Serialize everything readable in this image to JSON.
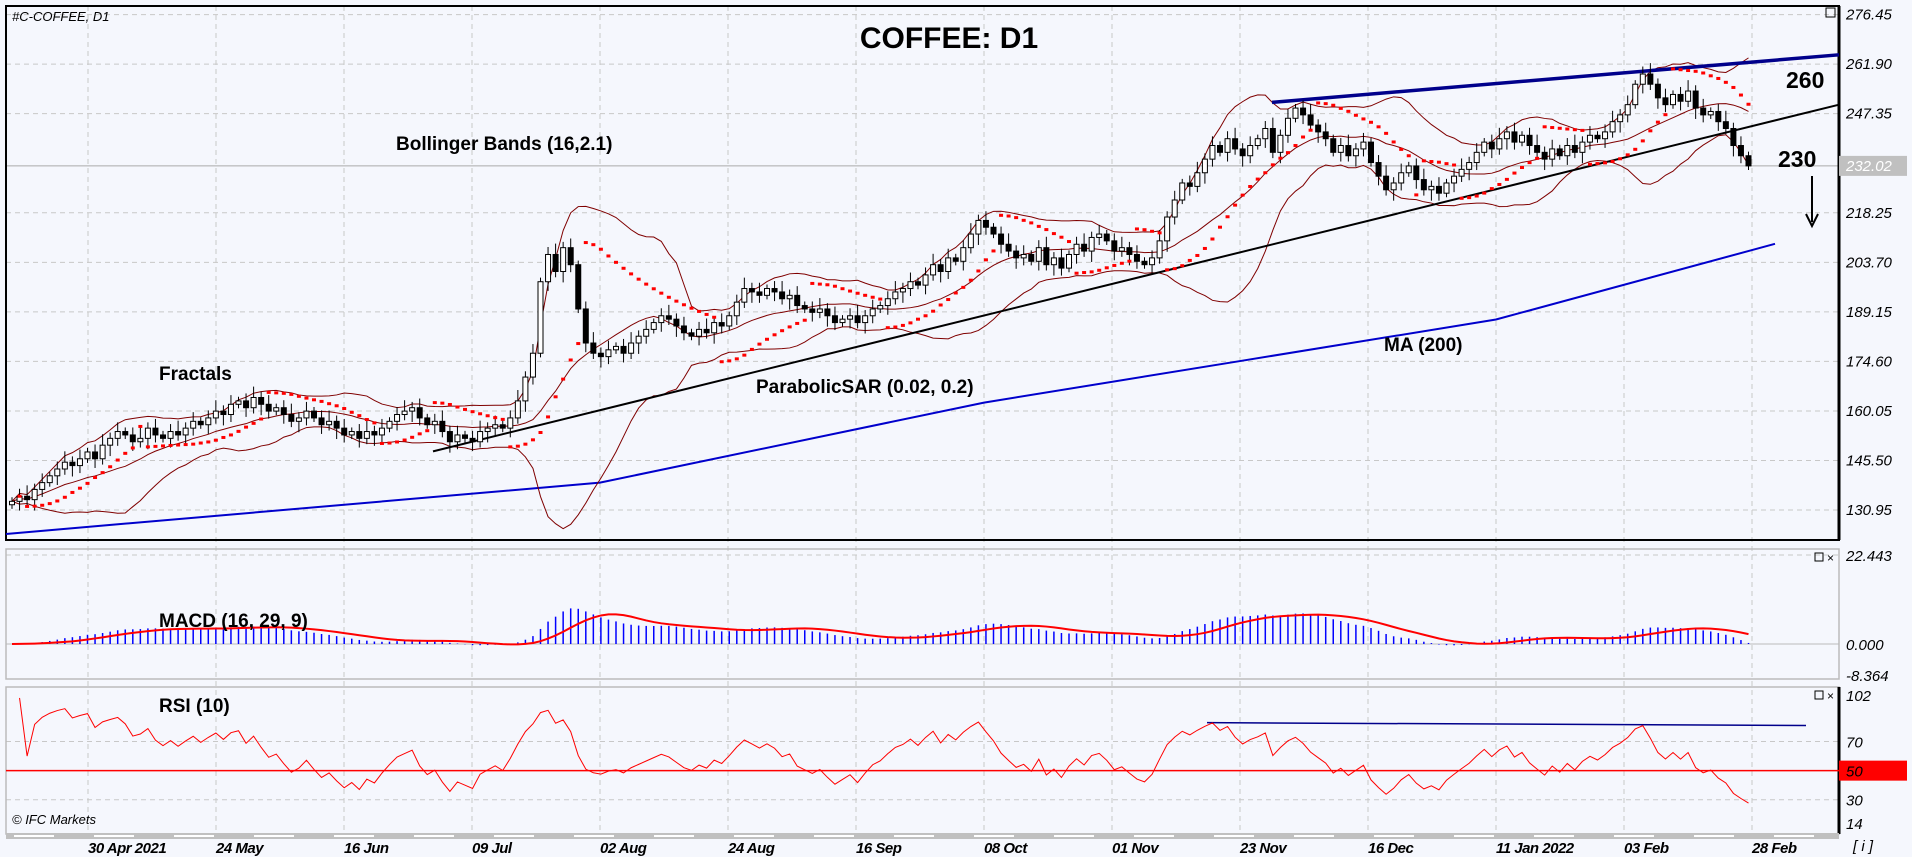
{
  "header": {
    "symbol_label": "#C-COFFEE, D1",
    "title": "COFFEE: D1",
    "copyright": "© IFC Markets",
    "info_button": "[ i ]"
  },
  "annotations": {
    "bollinger": "Bollinger Bands (16,2.1)",
    "fractals": "Fractals",
    "sar": "ParabolicSAR (0.02, 0.2)",
    "ma": "MA (200)",
    "level_high": "260",
    "level_low": "230",
    "macd": "MACD (16, 29, 9)",
    "rsi": "RSI (10)"
  },
  "colors": {
    "bull_body": "#ffffff",
    "bear_body": "#000000",
    "ma200": "#0000cc",
    "resistance": "#00008b",
    "support": "#000000",
    "bollinger": "#7f0000",
    "sar": "#ff0000",
    "fractal_up": "#00cc00",
    "fractal_down": "#ff0000",
    "macd_hist": "#0000ff",
    "macd_signal": "#ff0000",
    "rsi_line": "#ff0000",
    "rsi_level": "#ff0000",
    "current_price_bg": "#c0c0c0"
  },
  "chart_data": {
    "type": "candlestick",
    "title": "COFFEE: D1",
    "current_price": "232.02",
    "price_axis": {
      "ticks": [
        "276.45",
        "261.90",
        "247.35",
        "232.02",
        "218.25",
        "203.70",
        "189.15",
        "174.60",
        "160.05",
        "145.50",
        "130.95"
      ],
      "range": [
        130.95,
        276.45
      ]
    },
    "date_axis": {
      "ticks": [
        "30 Apr 2021",
        "24 May",
        "16 Jun",
        "09 Jul",
        "02 Aug",
        "24 Aug",
        "16 Sep",
        "08 Oct",
        "01 Nov",
        "23 Nov",
        "16 Dec",
        "11 Jan 2022",
        "03 Feb",
        "28 Feb"
      ]
    },
    "closes": [
      133.5,
      135,
      134,
      137,
      139,
      141,
      143,
      145,
      144,
      146,
      148,
      146,
      150,
      152,
      154,
      153,
      151,
      152,
      155,
      153,
      152,
      154,
      153,
      155,
      157,
      156,
      158,
      160,
      159,
      162,
      163,
      161,
      164,
      162,
      160,
      161,
      159,
      157,
      158,
      160,
      158,
      156,
      157,
      155,
      153,
      154,
      152,
      154,
      153,
      155,
      157,
      159,
      160,
      161,
      158,
      156,
      157,
      154,
      151,
      153,
      152,
      151,
      154,
      155,
      156,
      155,
      158,
      163,
      170,
      177,
      198,
      206,
      201,
      208,
      203,
      190,
      180,
      177,
      176,
      178,
      179,
      177,
      180,
      182,
      184,
      186,
      188,
      187,
      185,
      183,
      182,
      184,
      183,
      186,
      185,
      188,
      192,
      196,
      195,
      194,
      196,
      195,
      193,
      194,
      191,
      190,
      189,
      190,
      188,
      186,
      187,
      188,
      186,
      188,
      190,
      191,
      193,
      195,
      196,
      198,
      197,
      200,
      203,
      201,
      205,
      204,
      208,
      212,
      216,
      214,
      212,
      209,
      207,
      205,
      206,
      204,
      208,
      203,
      205,
      202,
      206,
      209,
      207,
      211,
      212,
      210,
      207,
      208,
      206,
      204,
      203,
      205,
      210,
      217,
      222,
      227,
      226,
      230,
      234,
      238,
      236,
      240,
      237,
      235,
      238,
      240,
      243,
      236,
      241,
      246,
      249,
      247,
      244,
      242,
      240,
      236,
      238,
      235,
      237,
      239,
      233,
      229,
      225,
      227,
      230,
      232,
      228,
      225,
      226,
      224,
      227,
      229,
      231,
      233,
      236,
      239,
      237,
      240,
      242,
      239,
      241,
      238,
      236,
      234,
      237,
      235,
      238,
      236,
      239,
      241,
      240,
      242,
      245,
      247,
      250,
      256,
      259,
      256,
      252,
      250,
      253,
      251,
      254,
      249,
      247,
      248,
      245,
      243,
      238,
      235,
      232.02
    ],
    "ma200": [
      [
        "30 Apr 2021",
        126
      ],
      [
        "02 Aug",
        139
      ],
      [
        "08 Oct",
        162.5
      ],
      [
        "23 Nov",
        174.7
      ],
      [
        "11 Jan 2022",
        186.9
      ],
      [
        "28 Feb",
        207.3
      ]
    ],
    "support_line": [
      [
        "09 Jul",
        151
      ],
      [
        "28 Feb",
        243.7
      ]
    ],
    "resistance_line": [
      [
        "11 Jan 2022",
        256.2
      ],
      [
        "28 Feb",
        262.5
      ]
    ],
    "indicators": {
      "bollinger": {
        "period": 16,
        "deviation": 2.1
      },
      "sar": {
        "step": 0.02,
        "max": 0.2
      },
      "macd": {
        "fast": 16,
        "slow": 29,
        "signal": 9
      },
      "rsi": {
        "period": 10
      }
    },
    "macd_axis": {
      "ticks": [
        "22.443",
        "0.000",
        "-8.364"
      ],
      "range": [
        -8.364,
        22.443
      ]
    },
    "rsi_axis": {
      "ticks": [
        "102",
        "70",
        "50",
        "30",
        "14"
      ],
      "range": [
        14,
        102
      ],
      "level": 50,
      "trend_level": 81
    }
  }
}
